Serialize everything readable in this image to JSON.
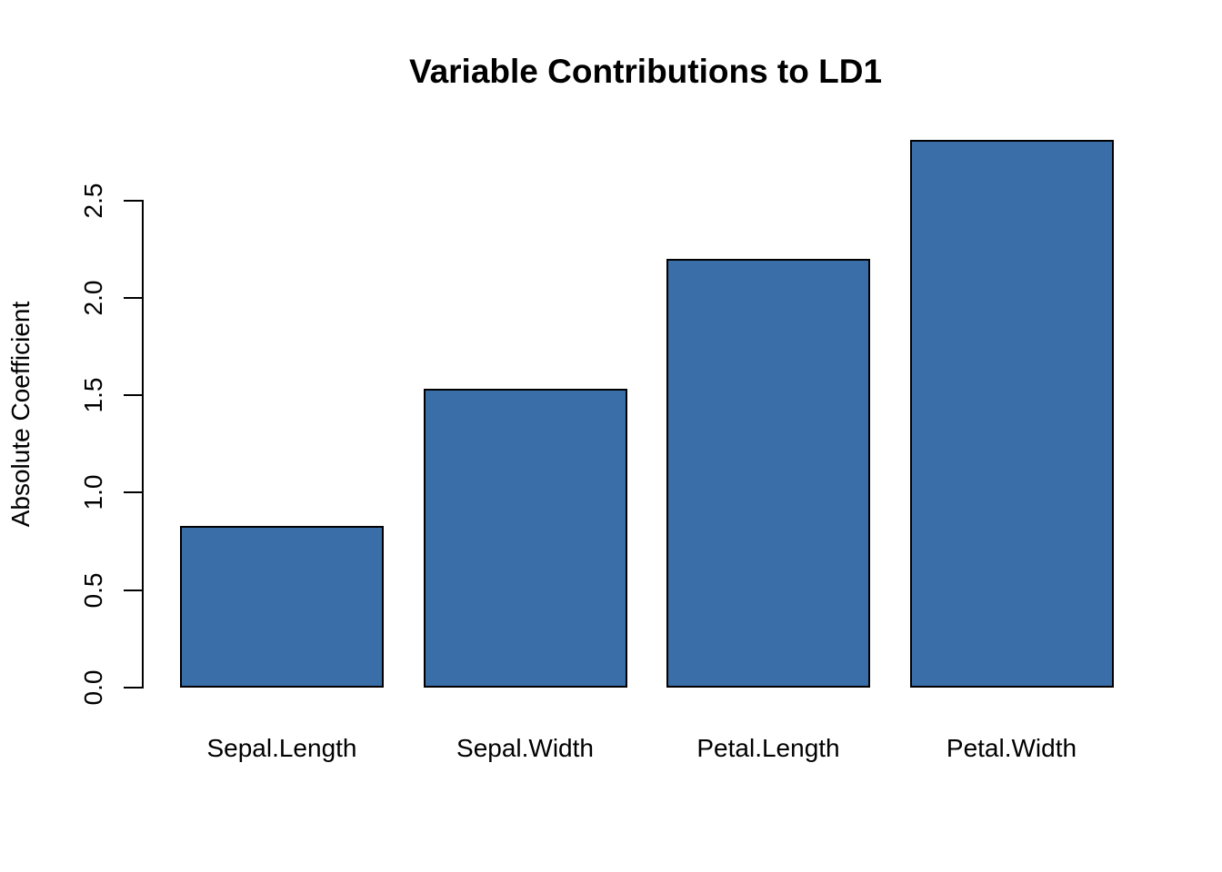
{
  "colors": {
    "background": "#FFFFFF",
    "bar_fill": "#3A6EA8",
    "bar_border": "#000000",
    "text": "#000000",
    "axis": "#000000"
  },
  "chart_data": {
    "type": "bar",
    "title": "Variable Contributions to LD1",
    "xlabel": "",
    "ylabel": "Absolute Coefficient",
    "categories": [
      "Sepal.Length",
      "Sepal.Width",
      "Petal.Length",
      "Petal.Width"
    ],
    "values": [
      0.829,
      1.534,
      2.201,
      2.81
    ],
    "ylim": [
      0,
      2.92
    ],
    "yticks": [
      0.0,
      0.5,
      1.0,
      1.5,
      2.0,
      2.5
    ],
    "ytick_labels": [
      "0.0",
      "0.5",
      "1.0",
      "1.5",
      "2.0",
      "2.5"
    ],
    "grid": false,
    "legend": false,
    "bar_style": "filled with black outline, no x-axis line, y-axis with outward ticks and rotated labels"
  }
}
